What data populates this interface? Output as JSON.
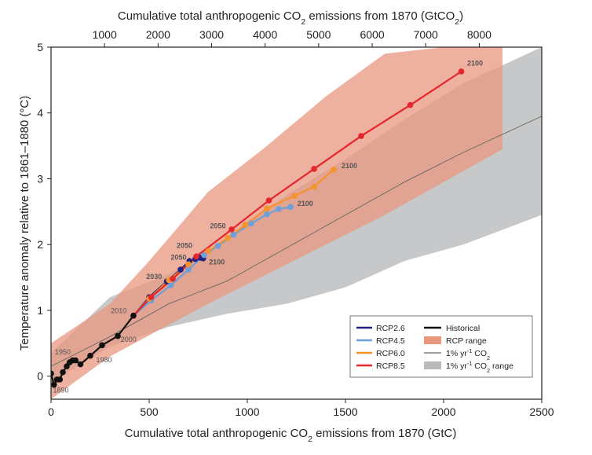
{
  "chart_data": {
    "type": "line",
    "top_axis_title_parts": [
      "Cumulative total anthropogenic CO",
      "2",
      " emissions from 1870 (GtCO",
      "2",
      ")"
    ],
    "xlabel_parts": [
      "Cumulative total anthropogenic CO",
      "2",
      " emissions from 1870 (GtC)"
    ],
    "ylabel": "Temperature anomaly relative to 1861–1880 (°C)",
    "xlim": [
      0,
      2500
    ],
    "ylim": [
      -0.35,
      5.0
    ],
    "xticks": [
      0,
      500,
      1000,
      1500,
      2000,
      2500
    ],
    "yticks": [
      0,
      1,
      2,
      3,
      4,
      5
    ],
    "top_ticks_gtco2": [
      1000,
      2000,
      3000,
      4000,
      5000,
      6000,
      7000,
      8000
    ],
    "gtc_per_gtco2": 0.2727,
    "grid": false,
    "legend_position": "bottom-right",
    "series": [
      {
        "name": "Historical",
        "color": "#111111",
        "x": [
          0,
          15,
          30,
          45,
          60,
          80,
          95,
          110,
          125,
          150,
          200,
          260,
          340,
          420
        ],
        "y": [
          0.04,
          -0.13,
          -0.05,
          -0.05,
          0.06,
          0.15,
          0.21,
          0.24,
          0.24,
          0.18,
          0.31,
          0.47,
          0.61,
          0.92
        ],
        "year_labels": [
          {
            "text": "1890",
            "x": 10,
            "y": -0.25
          },
          {
            "text": "1950",
            "x": 20,
            "y": 0.33
          },
          {
            "text": "1980",
            "x": 230,
            "y": 0.21
          },
          {
            "text": "2000",
            "x": 355,
            "y": 0.52
          },
          {
            "text": "2010",
            "x": 305,
            "y": 0.96
          }
        ]
      },
      {
        "name": "RCP2.6",
        "color": "#22227f",
        "x": [
          420,
          500,
          590,
          660,
          705,
          735,
          760,
          775
        ],
        "y": [
          0.92,
          1.2,
          1.44,
          1.62,
          1.75,
          1.78,
          1.8,
          1.79
        ],
        "year_labels": [
          {
            "text": "2030",
            "x": 485,
            "y": 1.48
          },
          {
            "text": "2050",
            "x": 610,
            "y": 1.77
          },
          {
            "text": "2100",
            "x": 805,
            "y": 1.7
          }
        ]
      },
      {
        "name": "RCP4.5",
        "color": "#6f9fd8",
        "x": [
          420,
          510,
          610,
          700,
          780,
          850,
          930,
          1020,
          1100,
          1160,
          1220
        ],
        "y": [
          0.92,
          1.15,
          1.38,
          1.62,
          1.84,
          1.98,
          2.15,
          2.32,
          2.46,
          2.54,
          2.57
        ],
        "year_labels": [
          {
            "text": "2100",
            "x": 1255,
            "y": 2.59
          }
        ]
      },
      {
        "name": "RCP6.0",
        "color": "#f5932d",
        "x": [
          420,
          500,
          600,
          700,
          800,
          900,
          990,
          1100,
          1240,
          1340,
          1440
        ],
        "y": [
          0.92,
          1.18,
          1.46,
          1.7,
          1.9,
          2.1,
          2.3,
          2.55,
          2.74,
          2.88,
          3.14
        ],
        "year_labels": [
          {
            "text": "2050",
            "x": 640,
            "y": 1.95
          },
          {
            "text": "2100",
            "x": 1480,
            "y": 3.16
          }
        ]
      },
      {
        "name": "RCP8.5",
        "color": "#e4262c",
        "x": [
          420,
          510,
          620,
          740,
          920,
          1110,
          1340,
          1580,
          1830,
          2090
        ],
        "y": [
          0.92,
          1.2,
          1.48,
          1.82,
          2.23,
          2.67,
          3.15,
          3.65,
          4.12,
          4.63
        ],
        "year_labels": [
          {
            "text": "2050",
            "x": 810,
            "y": 2.25
          },
          {
            "text": "2100",
            "x": 2120,
            "y": 4.72
          }
        ]
      },
      {
        "name": "1% yr⁻¹ CO₂",
        "color": "#666666",
        "x": [
          0,
          300,
          600,
          900,
          1200,
          1500,
          1800,
          2100,
          2500
        ],
        "y": [
          0.15,
          0.6,
          1.1,
          1.45,
          1.95,
          2.45,
          2.95,
          3.4,
          3.95
        ]
      }
    ],
    "ranges": [
      {
        "name": "RCP range",
        "color": "#e9977f",
        "x": [
          0,
          300,
          500,
          800,
          1100,
          1400,
          1700,
          2000,
          2300
        ],
        "low": [
          -0.35,
          0.3,
          0.62,
          1.1,
          1.55,
          2.0,
          2.45,
          2.95,
          3.45
        ],
        "high": [
          0.5,
          1.1,
          1.75,
          2.8,
          3.5,
          4.25,
          4.9,
          5.0,
          5.0
        ]
      },
      {
        "name": "1% yr⁻¹ CO₂ range",
        "color": "#b8babc",
        "x": [
          0,
          300,
          600,
          900,
          1200,
          1500,
          1800,
          2100,
          2500
        ],
        "low": [
          -0.1,
          0.45,
          0.75,
          0.95,
          1.1,
          1.35,
          1.75,
          2.0,
          2.45
        ],
        "high": [
          0.35,
          1.2,
          1.55,
          2.1,
          2.75,
          3.3,
          3.9,
          4.45,
          5.0
        ]
      }
    ],
    "legend": {
      "col1": [
        "RCP2.6",
        "RCP4.5",
        "RCP6.0",
        "RCP8.5"
      ],
      "col2": [
        {
          "kind": "line",
          "color": "#111111",
          "parts": [
            "Historical"
          ]
        },
        {
          "kind": "band",
          "color": "#e9977f",
          "parts": [
            "RCP range"
          ]
        },
        {
          "kind": "line",
          "color": "#666666",
          "parts": [
            "1% yr",
            "-1",
            " CO",
            "2"
          ]
        },
        {
          "kind": "band",
          "color": "#b8babc",
          "parts": [
            "1% yr",
            "-1",
            " CO",
            "2",
            " range"
          ]
        }
      ]
    }
  }
}
